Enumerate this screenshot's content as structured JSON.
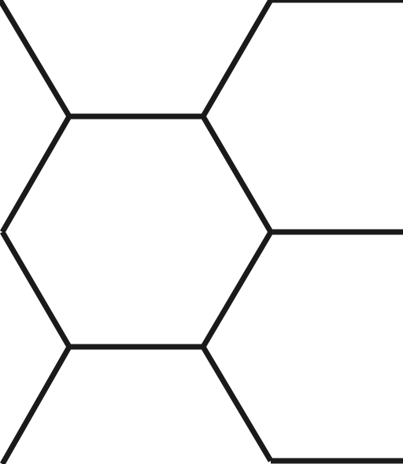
{
  "diagram": {
    "kind": "hexagonal grid fragment",
    "stroke_color": "#1a1a1a",
    "background_color": "#ffffff",
    "edges": [
      "upper-left-diagonal",
      "top-center-horizontal",
      "top-right-diagonal",
      "top-right-horizontal",
      "center-upper-left-edge",
      "center-upper-right-edge",
      "right-middle-horizontal",
      "center-lower-left-edge",
      "center-lower-right-edge",
      "bottom-center-horizontal",
      "lower-left-diagonal",
      "lower-right-diagonal",
      "bottom-right-horizontal"
    ]
  }
}
